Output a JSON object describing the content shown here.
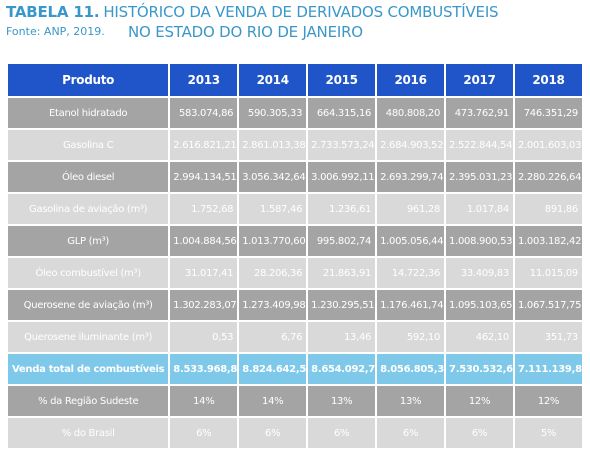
{
  "header": {
    "title_label": "TABELA 11.",
    "title_text": "HISTÓRICO DA VENDA DE DERIVADOS COMBUSTÍVEIS",
    "title_text_line2": "NO ESTADO DO RIO DE JANEIRO",
    "source": "Fonte: ANP, 2019."
  },
  "table": {
    "columns": [
      "Produto",
      "2013",
      "2014",
      "2015",
      "2016",
      "2017",
      "2018"
    ],
    "rows": [
      {
        "label": "Etanol hidratado",
        "values": [
          "583.074,86",
          "590.305,33",
          "664.315,16",
          "480.808,20",
          "473.762,91",
          "746.351,29"
        ]
      },
      {
        "label": "Gasolina C",
        "values": [
          "2.616.821,21",
          "2.861.013,38",
          "2.733.573,24",
          "2.684.903,52",
          "2.522.844,54",
          "2.001.603,03"
        ]
      },
      {
        "label": "Óleo diesel",
        "values": [
          "2.994.134,51",
          "3.056.342,64",
          "3.006.992,11",
          "2.693.299,74",
          "2.395.031,23",
          "2.280.226,64"
        ]
      },
      {
        "label": "Gasolina de aviação (m³)",
        "values": [
          "1.752,68",
          "1.587,46",
          "1.236,61",
          "961,28",
          "1.017,84",
          "891,86"
        ]
      },
      {
        "label": "GLP (m³)",
        "values": [
          "1.004.884,56",
          "1.013.770,60",
          "995.802,74",
          "1.005.056,44",
          "1.008.900,53",
          "1.003.182,42"
        ]
      },
      {
        "label": "Óleo combustível (m³)",
        "values": [
          "31.017,41",
          "28.206,36",
          "21.863,91",
          "14.722,36",
          "33.409,83",
          "11.015,09"
        ]
      },
      {
        "label": "Querosene de aviação (m³)",
        "values": [
          "1.302.283,07",
          "1.273.409,98",
          "1.230.295,51",
          "1.176.461,74",
          "1.095.103,65",
          "1.067.517,75"
        ]
      },
      {
        "label": "Querosene iluminante (m³)",
        "values": [
          "0,53",
          "6,76",
          "13,46",
          "592,10",
          "462,10",
          "351,73"
        ]
      },
      {
        "label": "Venda total de combustíveis",
        "values": [
          "8.533.968,82",
          "8.824.642,51",
          "8.654.092,74",
          "8.056.805,39",
          "7.530.532,61",
          "7.111.139,80"
        ]
      },
      {
        "label": "% da Região Sudeste",
        "values": [
          "14%",
          "14%",
          "13%",
          "13%",
          "12%",
          "12%"
        ]
      },
      {
        "label": "% do Brasil",
        "values": [
          "6%",
          "6%",
          "6%",
          "6%",
          "6%",
          "5%"
        ]
      }
    ]
  },
  "colors": {
    "header_bg": "#1f55c9",
    "title_text": "#3a97c9",
    "row_dark": "#a4a4a4",
    "row_light": "#d9d9d9",
    "row_total": "#7ec8ea"
  }
}
